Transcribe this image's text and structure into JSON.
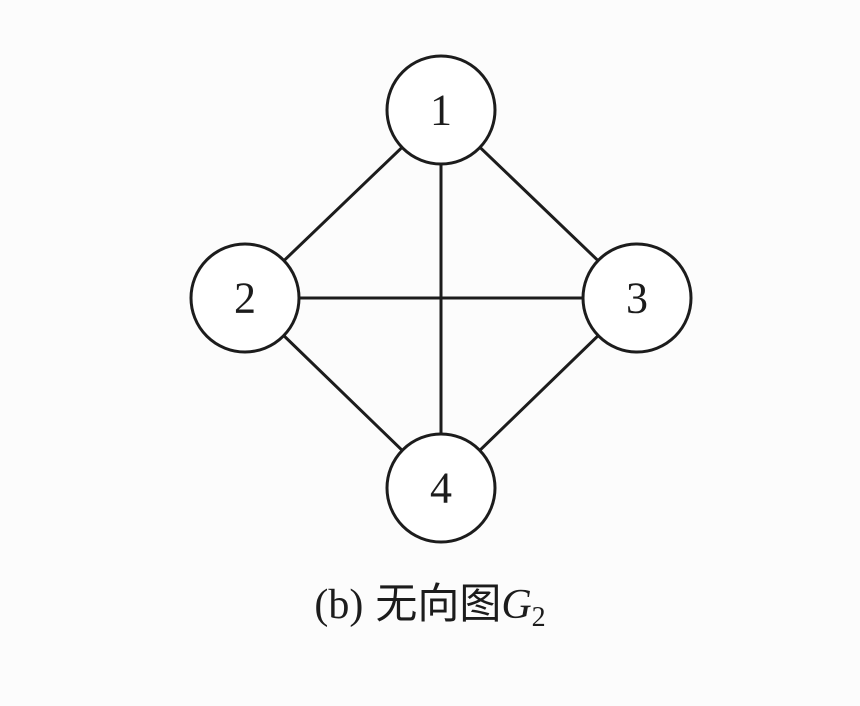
{
  "graph": {
    "nodes": [
      {
        "id": "1",
        "label": "1"
      },
      {
        "id": "2",
        "label": "2"
      },
      {
        "id": "3",
        "label": "3"
      },
      {
        "id": "4",
        "label": "4"
      }
    ],
    "edges": [
      [
        "1",
        "2"
      ],
      [
        "1",
        "3"
      ],
      [
        "1",
        "4"
      ],
      [
        "2",
        "3"
      ],
      [
        "2",
        "4"
      ],
      [
        "3",
        "4"
      ]
    ],
    "directed": false
  },
  "caption": {
    "prefix": "(b)",
    "text": "无向图",
    "symbol": "G",
    "subscript": "2"
  },
  "colors": {
    "line": "#1c1c1c",
    "background": "#fcfcfc"
  }
}
